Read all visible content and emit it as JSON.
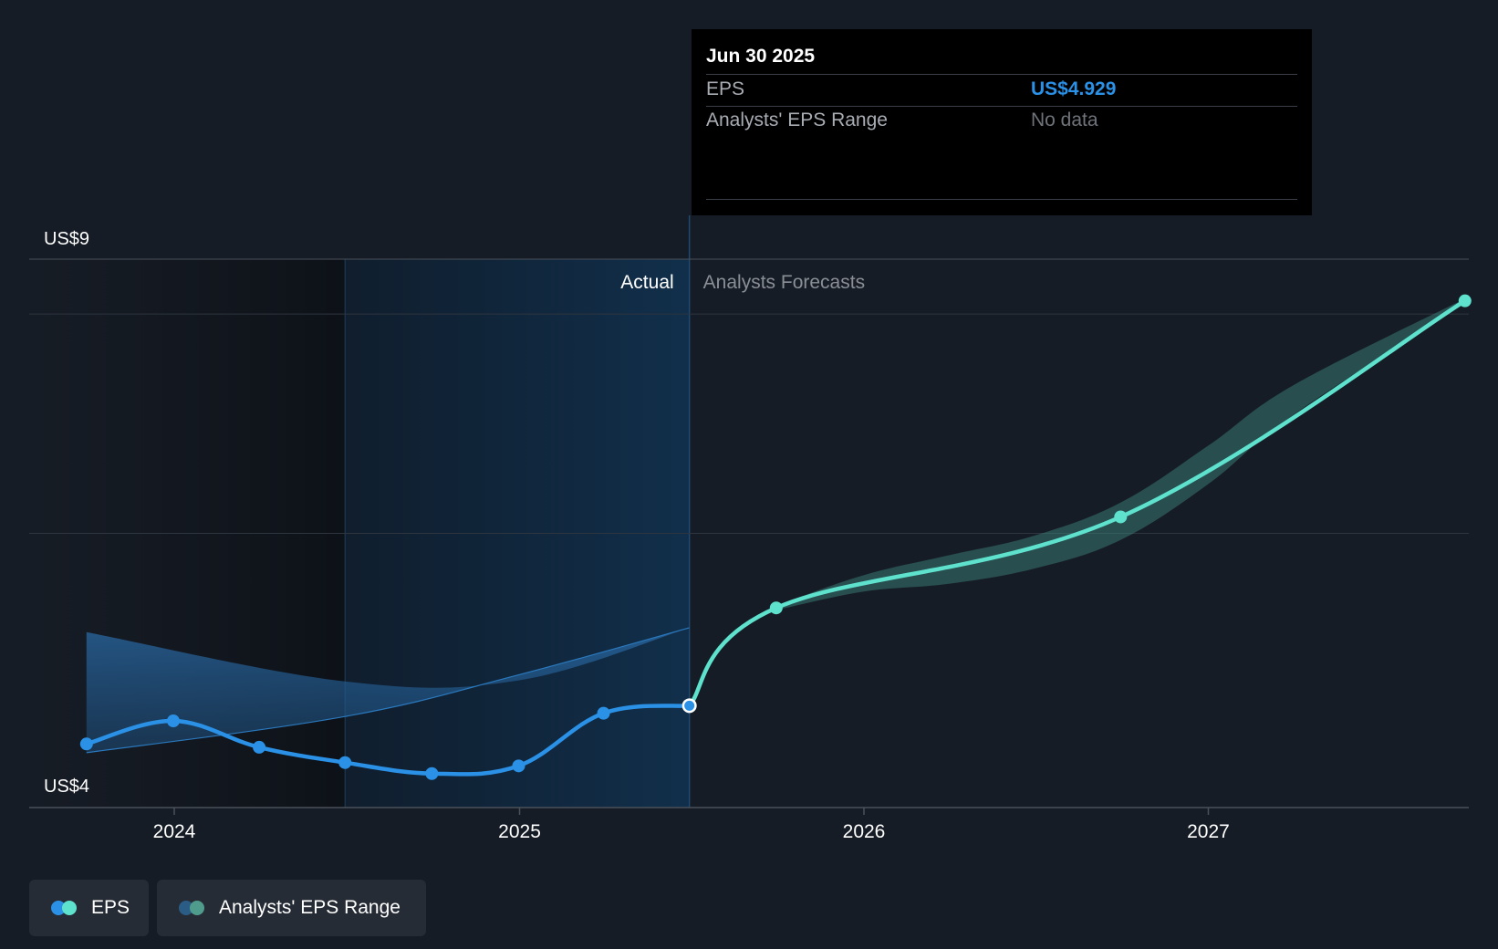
{
  "chart_data": {
    "type": "line",
    "y_axis": {
      "labels": [
        "US$9",
        "US$4"
      ],
      "ylim": [
        4,
        9
      ]
    },
    "x_axis": {
      "tick_labels": [
        "2024",
        "2025",
        "2026",
        "2027"
      ]
    },
    "sections": {
      "actual_label": "Actual",
      "forecast_label": "Analysts Forecasts"
    },
    "series": [
      {
        "name": "EPS",
        "role": "actual",
        "color": "#2a91e6",
        "points": [
          {
            "x": "2023-09-30",
            "y": 4.58
          },
          {
            "x": "2023-12-31",
            "y": 4.79
          },
          {
            "x": "2024-03-31",
            "y": 4.55
          },
          {
            "x": "2024-06-30",
            "y": 4.41
          },
          {
            "x": "2024-09-30",
            "y": 4.31
          },
          {
            "x": "2024-12-31",
            "y": 4.38
          },
          {
            "x": "2025-03-31",
            "y": 4.86
          },
          {
            "x": "2025-06-30",
            "y": 4.929
          }
        ]
      },
      {
        "name": "EPS",
        "role": "forecast",
        "color": "#5ee2cd",
        "points": [
          {
            "x": "2025-06-30",
            "y": 4.929
          },
          {
            "x": "2025-09-30",
            "y": 5.82
          },
          {
            "x": "2026-09-30",
            "y": 6.65
          },
          {
            "x": "2027-09-30",
            "y": 8.62
          }
        ]
      }
    ],
    "range_band_forecast": [
      {
        "x": "2025-09-30",
        "low": 5.8,
        "high": 5.84
      },
      {
        "x": "2026-01-01",
        "low": 5.97,
        "high": 6.12
      },
      {
        "x": "2026-04-01",
        "low": 6.04,
        "high": 6.3
      },
      {
        "x": "2026-07-01",
        "low": 6.18,
        "high": 6.48
      },
      {
        "x": "2026-09-30",
        "low": 6.44,
        "high": 6.78
      },
      {
        "x": "2027-01-01",
        "low": 6.95,
        "high": 7.3
      },
      {
        "x": "2027-04-01",
        "low": 7.58,
        "high": 7.85
      },
      {
        "x": "2027-09-30",
        "low": 8.6,
        "high": 8.64
      }
    ],
    "range_band_history": {
      "upper": [
        {
          "x": "2023-09-30",
          "y": 5.6
        },
        {
          "x": "2024-06-30",
          "y": 5.15
        },
        {
          "x": "2024-12-31",
          "y": 5.16
        },
        {
          "x": "2025-06-30",
          "y": 5.64
        }
      ],
      "lower": [
        {
          "x": "2023-09-30",
          "y": 4.5
        },
        {
          "x": "2024-06-30",
          "y": 4.83
        },
        {
          "x": "2024-12-31",
          "y": 5.21
        },
        {
          "x": "2025-06-30",
          "y": 5.64
        }
      ]
    }
  },
  "tooltip": {
    "date": "Jun 30 2025",
    "rows": [
      {
        "label": "EPS",
        "value": "US$4.929"
      },
      {
        "label": "Analysts' EPS Range",
        "value": "No data"
      }
    ]
  },
  "legend": [
    {
      "label": "EPS",
      "colors": [
        "#2a91e6",
        "#5ee2cd"
      ]
    },
    {
      "label": "Analysts' EPS Range",
      "colors": [
        "#2b5c85",
        "#4f9c8d"
      ]
    }
  ]
}
